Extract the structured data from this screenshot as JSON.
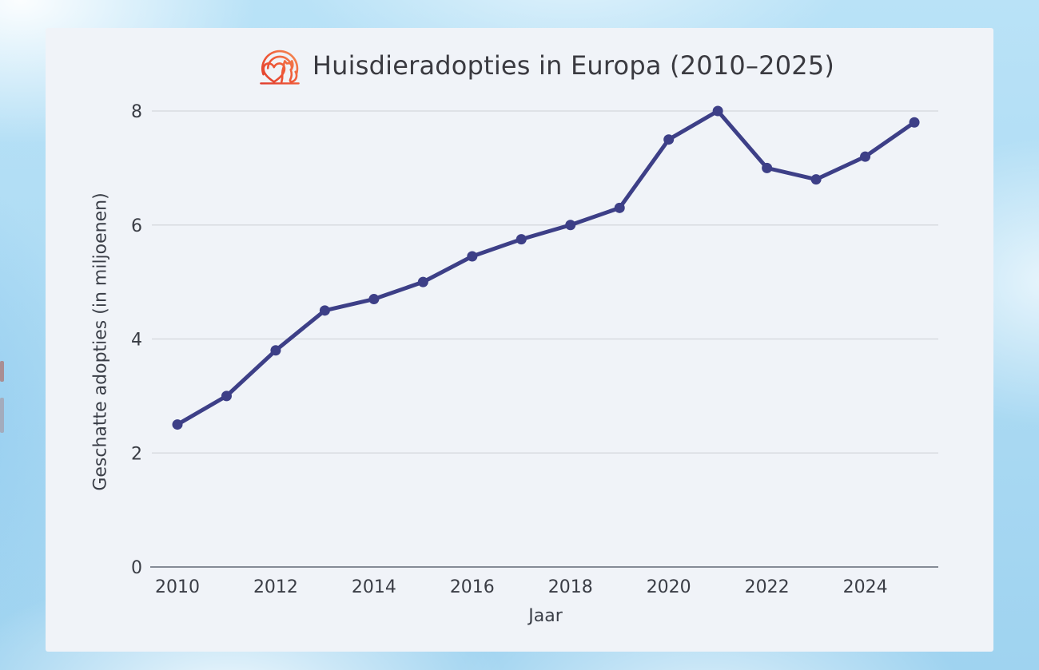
{
  "background": {
    "sky_color": "#aedcf4",
    "cloud_color": "#ffffff"
  },
  "card": {
    "bg_color": "#f0f3f8"
  },
  "header": {
    "icon": "pet-adoption-heart-cat-icon",
    "icon_color_start": "#e03a2a",
    "icon_color_end": "#f69a5a"
  },
  "chart_data": {
    "type": "line",
    "title": "Huisdieradopties in Europa (2010–2025)",
    "xlabel": "Jaar",
    "ylabel": "Geschatte adopties (in miljoenen)",
    "x": [
      2010,
      2011,
      2012,
      2013,
      2014,
      2015,
      2016,
      2017,
      2018,
      2019,
      2020,
      2021,
      2022,
      2023,
      2024,
      2025
    ],
    "values": [
      2.5,
      3.0,
      3.8,
      4.5,
      4.7,
      5.0,
      5.45,
      5.75,
      6.0,
      6.3,
      7.5,
      8.0,
      7.0,
      6.8,
      7.2,
      7.8
    ],
    "xticks": [
      2010,
      2012,
      2014,
      2016,
      2018,
      2020,
      2022,
      2024
    ],
    "yticks": [
      0,
      2,
      4,
      6,
      8
    ],
    "ylim": [
      0,
      8.5
    ],
    "grid": true,
    "legend": "none",
    "line_color": "#3d3f87",
    "marker_color": "#3d3f87",
    "grid_color": "#d8dbe0",
    "axis_color": "#858b96"
  }
}
